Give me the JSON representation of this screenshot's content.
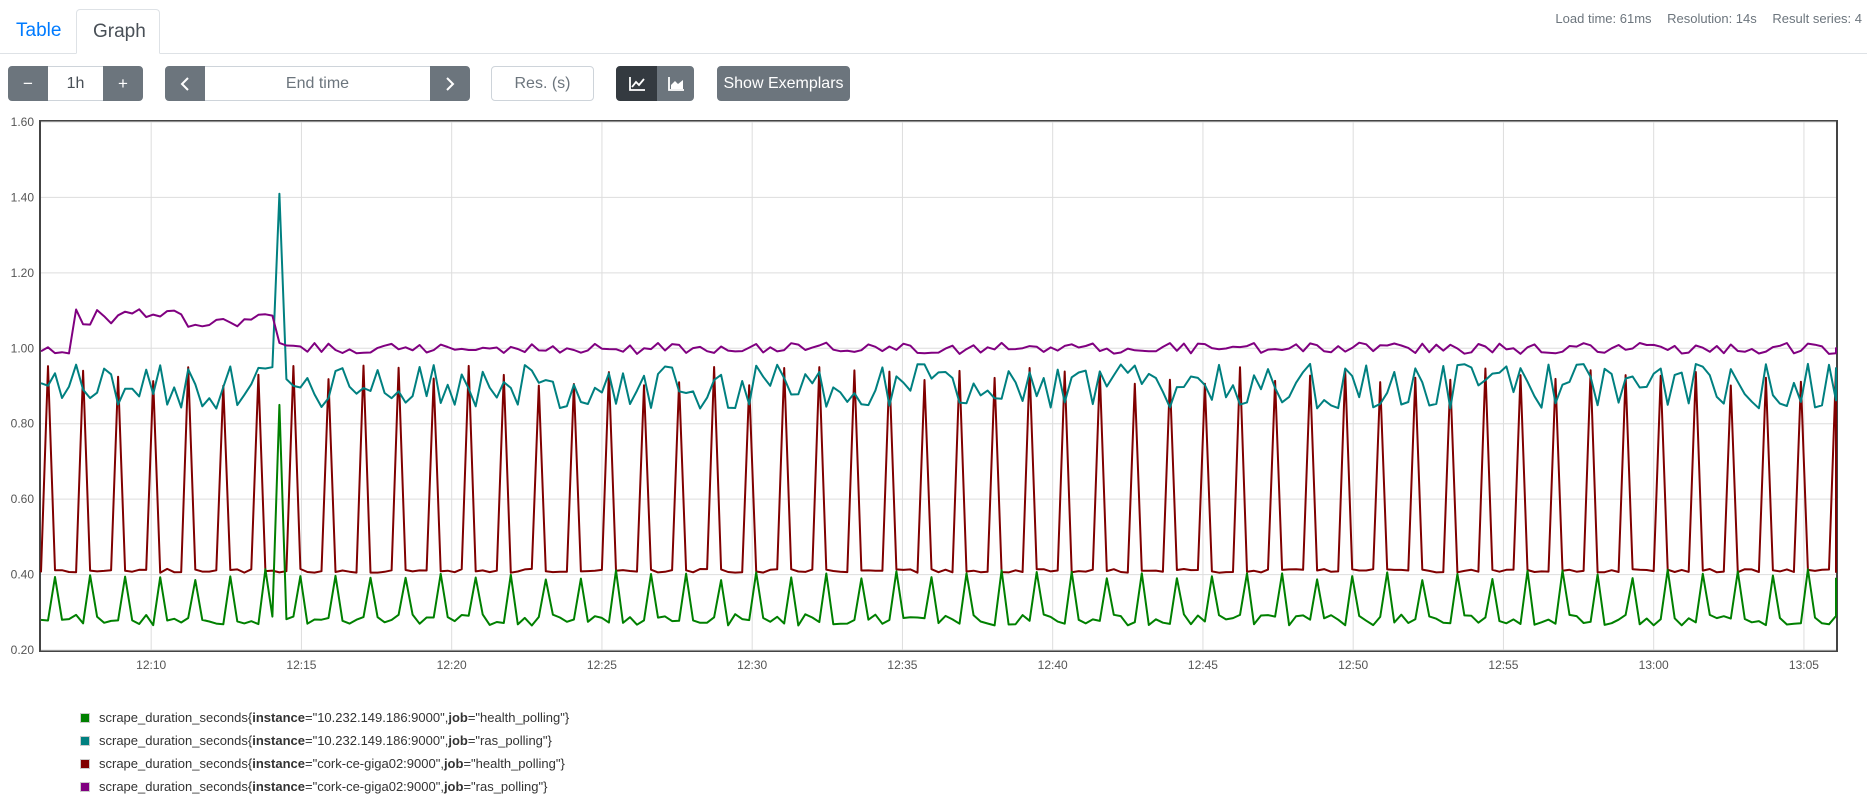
{
  "tabs": {
    "table": "Table",
    "graph": "Graph"
  },
  "stats": {
    "load_time": "Load time: 61ms",
    "resolution": "Resolution: 14s",
    "result_series": "Result series: 4"
  },
  "controls": {
    "minus": "−",
    "range": "1h",
    "plus": "+",
    "prev": "‹",
    "end_time_placeholder": "End time",
    "next": "›",
    "resolution_placeholder": "Res. (s)",
    "line_icon": "line-chart-icon",
    "stacked_icon": "stacked-area-chart-icon",
    "show_exemplars": "Show Exemplars"
  },
  "legend": [
    {
      "metric": "scrape_duration_seconds{",
      "k1": "instance",
      "v1": "=\"10.232.149.186:9000\", ",
      "k2": "job",
      "v2": "=\"health_polling\"}",
      "color": "#008000"
    },
    {
      "metric": "scrape_duration_seconds{",
      "k1": "instance",
      "v1": "=\"10.232.149.186:9000\", ",
      "k2": "job",
      "v2": "=\"ras_polling\"}",
      "color": "#008080"
    },
    {
      "metric": "scrape_duration_seconds{",
      "k1": "instance",
      "v1": "=\"cork-ce-giga02:9000\", ",
      "k2": "job",
      "v2": "=\"health_polling\"}",
      "color": "#800000"
    },
    {
      "metric": "scrape_duration_seconds{",
      "k1": "instance",
      "v1": "=\"cork-ce-giga02:9000\", ",
      "k2": "job",
      "v2": "=\"ras_polling\"}",
      "color": "#800080"
    }
  ],
  "chart_data": {
    "type": "line",
    "title": "",
    "xlabel": "",
    "ylabel": "",
    "xlim": [
      "12:06",
      "13:06"
    ],
    "ylim": [
      0.2,
      1.6
    ],
    "y_ticks": [
      "1.60",
      "1.40",
      "1.20",
      "1.00",
      "0.80",
      "0.60",
      "0.40",
      "0.20"
    ],
    "x_ticks": [
      "12:10",
      "12:15",
      "12:20",
      "12:25",
      "12:30",
      "12:35",
      "12:40",
      "12:45",
      "12:50",
      "12:55",
      "13:00",
      "13:05"
    ],
    "step_seconds": 14,
    "series": [
      {
        "name": "scrape_duration_seconds{instance=\"10.232.149.186:9000\", job=\"health_polling\"}",
        "color": "#008000",
        "baseline": 0.28,
        "spike": 0.4,
        "note": "periodic small spikes, one spike ~0.85 at 12:14"
      },
      {
        "name": "scrape_duration_seconds{instance=\"10.232.149.186:9000\", job=\"ras_polling\"}",
        "color": "#008080",
        "baseline": 0.9,
        "range": [
          0.8,
          0.98
        ],
        "note": "peak ~1.41 at 12:14"
      },
      {
        "name": "scrape_duration_seconds{instance=\"cork-ce-giga02:9000\", job=\"health_polling\"}",
        "color": "#800000",
        "baseline": 0.41,
        "spike": 0.93,
        "spike_period_seconds": 70
      },
      {
        "name": "scrape_duration_seconds{instance=\"cork-ce-giga02:9000\", job=\"ras_polling\"}",
        "color": "#800080",
        "baseline": 1.0,
        "range": [
          0.97,
          1.14
        ],
        "note": "elevated ~1.08 between 12:07 and 12:14"
      }
    ]
  }
}
